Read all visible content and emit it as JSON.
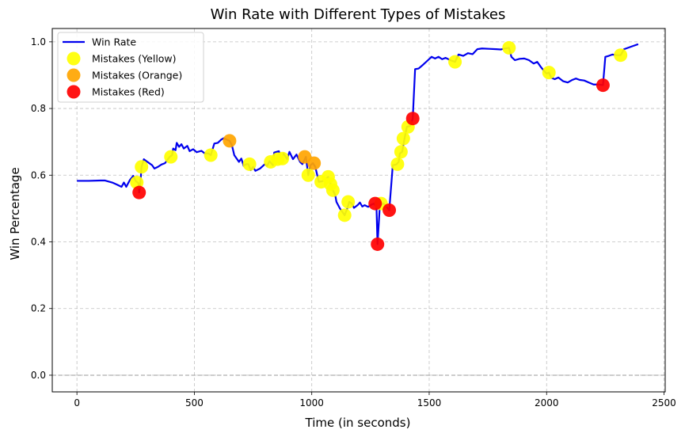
{
  "chart_data": {
    "type": "line",
    "title": "Win Rate with Different Types of Mistakes",
    "xlabel": "Time (in seconds)",
    "ylabel": "Win Percentage",
    "xlim": [
      -105,
      2505
    ],
    "ylim": [
      -0.05,
      1.04
    ],
    "xticks": [
      0,
      500,
      1000,
      1500,
      2000,
      2500
    ],
    "yticks": [
      0.0,
      0.2,
      0.4,
      0.6,
      0.8,
      1.0
    ],
    "grid": true,
    "legend_position": "top-left",
    "reference_line_y": 0,
    "series": [
      {
        "name": "Win Rate",
        "color": "#0000ee",
        "points": [
          [
            0,
            0.583
          ],
          [
            50,
            0.583
          ],
          [
            100,
            0.584
          ],
          [
            120,
            0.584
          ],
          [
            150,
            0.578
          ],
          [
            170,
            0.572
          ],
          [
            190,
            0.565
          ],
          [
            200,
            0.578
          ],
          [
            210,
            0.565
          ],
          [
            225,
            0.585
          ],
          [
            240,
            0.598
          ],
          [
            250,
            0.583
          ],
          [
            262,
            0.576
          ],
          [
            265,
            0.548
          ],
          [
            270,
            0.575
          ],
          [
            275,
            0.625
          ],
          [
            285,
            0.648
          ],
          [
            300,
            0.64
          ],
          [
            320,
            0.63
          ],
          [
            330,
            0.62
          ],
          [
            345,
            0.625
          ],
          [
            360,
            0.632
          ],
          [
            375,
            0.636
          ],
          [
            395,
            0.655
          ],
          [
            405,
            0.66
          ],
          [
            410,
            0.68
          ],
          [
            420,
            0.675
          ],
          [
            425,
            0.697
          ],
          [
            435,
            0.685
          ],
          [
            445,
            0.693
          ],
          [
            455,
            0.68
          ],
          [
            470,
            0.688
          ],
          [
            480,
            0.672
          ],
          [
            495,
            0.678
          ],
          [
            510,
            0.669
          ],
          [
            530,
            0.673
          ],
          [
            545,
            0.665
          ],
          [
            560,
            0.665
          ],
          [
            570,
            0.66
          ],
          [
            585,
            0.695
          ],
          [
            600,
            0.697
          ],
          [
            615,
            0.707
          ],
          [
            625,
            0.711
          ],
          [
            640,
            0.706
          ],
          [
            650,
            0.703
          ],
          [
            660,
            0.69
          ],
          [
            670,
            0.66
          ],
          [
            690,
            0.64
          ],
          [
            700,
            0.65
          ],
          [
            710,
            0.628
          ],
          [
            720,
            0.633
          ],
          [
            730,
            0.633
          ],
          [
            740,
            0.615
          ],
          [
            750,
            0.625
          ],
          [
            760,
            0.613
          ],
          [
            780,
            0.62
          ],
          [
            800,
            0.633
          ],
          [
            810,
            0.628
          ],
          [
            820,
            0.642
          ],
          [
            835,
            0.63
          ],
          [
            840,
            0.668
          ],
          [
            860,
            0.672
          ],
          [
            870,
            0.65
          ],
          [
            880,
            0.665
          ],
          [
            895,
            0.648
          ],
          [
            905,
            0.67
          ],
          [
            920,
            0.648
          ],
          [
            935,
            0.662
          ],
          [
            950,
            0.64
          ],
          [
            960,
            0.633
          ],
          [
            975,
            0.655
          ],
          [
            985,
            0.6
          ],
          [
            995,
            0.63
          ],
          [
            1005,
            0.636
          ],
          [
            1015,
            0.625
          ],
          [
            1030,
            0.58
          ],
          [
            1045,
            0.582
          ],
          [
            1060,
            0.59
          ],
          [
            1070,
            0.595
          ],
          [
            1080,
            0.575
          ],
          [
            1090,
            0.555
          ],
          [
            1100,
            0.54
          ],
          [
            1105,
            0.52
          ],
          [
            1120,
            0.5
          ],
          [
            1140,
            0.48
          ],
          [
            1150,
            0.498
          ],
          [
            1160,
            0.52
          ],
          [
            1170,
            0.515
          ],
          [
            1180,
            0.502
          ],
          [
            1195,
            0.51
          ],
          [
            1205,
            0.518
          ],
          [
            1215,
            0.506
          ],
          [
            1225,
            0.51
          ],
          [
            1240,
            0.505
          ],
          [
            1255,
            0.512
          ],
          [
            1265,
            0.515
          ],
          [
            1270,
            0.51
          ],
          [
            1275,
            0.52
          ],
          [
            1280,
            0.393
          ],
          [
            1290,
            0.51
          ],
          [
            1305,
            0.515
          ],
          [
            1315,
            0.508
          ],
          [
            1330,
            0.495
          ],
          [
            1345,
            0.63
          ],
          [
            1360,
            0.632
          ],
          [
            1370,
            0.64
          ],
          [
            1375,
            0.665
          ],
          [
            1385,
            0.67
          ],
          [
            1395,
            0.71
          ],
          [
            1405,
            0.745
          ],
          [
            1420,
            0.748
          ],
          [
            1430,
            0.77
          ],
          [
            1440,
            0.918
          ],
          [
            1455,
            0.92
          ],
          [
            1475,
            0.932
          ],
          [
            1495,
            0.945
          ],
          [
            1510,
            0.955
          ],
          [
            1525,
            0.95
          ],
          [
            1540,
            0.955
          ],
          [
            1555,
            0.948
          ],
          [
            1570,
            0.952
          ],
          [
            1590,
            0.945
          ],
          [
            1610,
            0.94
          ],
          [
            1625,
            0.962
          ],
          [
            1645,
            0.958
          ],
          [
            1665,
            0.966
          ],
          [
            1685,
            0.963
          ],
          [
            1705,
            0.978
          ],
          [
            1725,
            0.98
          ],
          [
            1755,
            0.979
          ],
          [
            1785,
            0.978
          ],
          [
            1805,
            0.977
          ],
          [
            1820,
            0.98
          ],
          [
            1840,
            0.982
          ],
          [
            1850,
            0.955
          ],
          [
            1865,
            0.945
          ],
          [
            1885,
            0.949
          ],
          [
            1905,
            0.95
          ],
          [
            1925,
            0.945
          ],
          [
            1945,
            0.935
          ],
          [
            1960,
            0.94
          ],
          [
            1975,
            0.925
          ],
          [
            1990,
            0.912
          ],
          [
            2000,
            0.905
          ],
          [
            2010,
            0.908
          ],
          [
            2020,
            0.892
          ],
          [
            2035,
            0.888
          ],
          [
            2050,
            0.893
          ],
          [
            2070,
            0.882
          ],
          [
            2090,
            0.878
          ],
          [
            2110,
            0.886
          ],
          [
            2125,
            0.89
          ],
          [
            2140,
            0.886
          ],
          [
            2160,
            0.884
          ],
          [
            2180,
            0.878
          ],
          [
            2200,
            0.872
          ],
          [
            2220,
            0.872
          ],
          [
            2240,
            0.87
          ],
          [
            2250,
            0.955
          ],
          [
            2265,
            0.958
          ],
          [
            2280,
            0.962
          ],
          [
            2300,
            0.96
          ],
          [
            2315,
            0.96
          ],
          [
            2330,
            0.978
          ],
          [
            2350,
            0.983
          ],
          [
            2370,
            0.988
          ],
          [
            2390,
            0.993
          ]
        ]
      },
      {
        "name": "Mistakes (Yellow)",
        "color": "#ffff00",
        "points": [
          [
            255,
            0.578
          ],
          [
            275,
            0.625
          ],
          [
            400,
            0.655
          ],
          [
            570,
            0.66
          ],
          [
            735,
            0.633
          ],
          [
            825,
            0.64
          ],
          [
            855,
            0.648
          ],
          [
            875,
            0.65
          ],
          [
            985,
            0.6
          ],
          [
            1040,
            0.58
          ],
          [
            1070,
            0.595
          ],
          [
            1080,
            0.573
          ],
          [
            1090,
            0.555
          ],
          [
            1140,
            0.48
          ],
          [
            1155,
            0.52
          ],
          [
            1295,
            0.515
          ],
          [
            1365,
            0.633
          ],
          [
            1380,
            0.67
          ],
          [
            1390,
            0.71
          ],
          [
            1410,
            0.745
          ],
          [
            1610,
            0.94
          ],
          [
            1840,
            0.982
          ],
          [
            2010,
            0.908
          ],
          [
            2315,
            0.96
          ]
        ]
      },
      {
        "name": "Mistakes (Orange)",
        "color": "#ffa500",
        "points": [
          [
            650,
            0.703
          ],
          [
            970,
            0.655
          ],
          [
            1010,
            0.636
          ]
        ]
      },
      {
        "name": "Mistakes (Red)",
        "color": "#ff0000",
        "points": [
          [
            265,
            0.548
          ],
          [
            1270,
            0.515
          ],
          [
            1280,
            0.393
          ],
          [
            1330,
            0.495
          ],
          [
            1430,
            0.77
          ],
          [
            2240,
            0.87
          ]
        ]
      }
    ]
  }
}
